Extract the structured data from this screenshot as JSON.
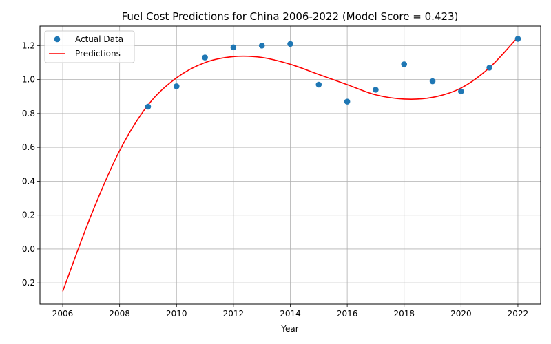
{
  "chart_data": {
    "type": "scatter",
    "title": "Fuel Cost Predictions for China 2006-2022 (Model Score = 0.423)",
    "xlabel": "Year",
    "ylabel": "",
    "xlim": [
      2005.2,
      2022.8
    ],
    "ylim": [
      -0.325,
      1.315
    ],
    "x_ticks": [
      2006,
      2008,
      2010,
      2012,
      2014,
      2016,
      2018,
      2020,
      2022
    ],
    "y_ticks": [
      -0.2,
      0.0,
      0.2,
      0.4,
      0.6,
      0.8,
      1.0,
      1.2
    ],
    "grid": true,
    "legend_position": "top-left",
    "series": [
      {
        "name": "Actual Data",
        "kind": "scatter",
        "color": "#1f77b4",
        "x": [
          2009,
          2010,
          2011,
          2012,
          2013,
          2014,
          2015,
          2016,
          2017,
          2018,
          2019,
          2020,
          2021,
          2022
        ],
        "y": [
          0.84,
          0.96,
          1.13,
          1.19,
          1.2,
          1.21,
          0.97,
          0.87,
          0.94,
          1.09,
          0.99,
          0.93,
          1.07,
          1.24
        ]
      },
      {
        "name": "Predictions",
        "kind": "line",
        "color": "#ff0000",
        "x": [
          2006,
          2007,
          2008,
          2009,
          2010,
          2011,
          2012,
          2013,
          2014,
          2015,
          2016,
          2017,
          2018,
          2019,
          2020,
          2021,
          2022
        ],
        "y": [
          -0.25,
          0.2,
          0.58,
          0.85,
          1.01,
          1.1,
          1.135,
          1.13,
          1.09,
          1.03,
          0.97,
          0.91,
          0.885,
          0.895,
          0.95,
          1.07,
          1.25
        ]
      }
    ]
  }
}
